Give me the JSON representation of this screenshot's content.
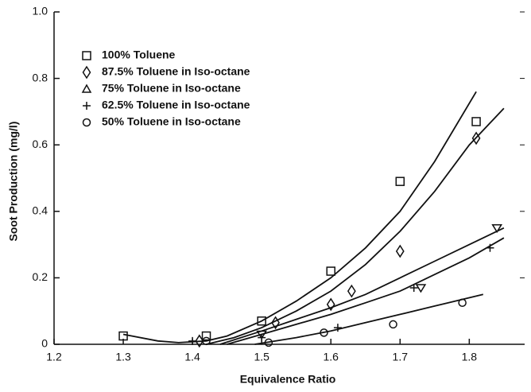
{
  "chart_data": {
    "type": "scatter",
    "xlabel": "Equivalence Ratio",
    "ylabel": "Soot Production (mg/l)",
    "xlim": [
      1.2,
      1.88
    ],
    "xticks": [
      1.2,
      1.3,
      1.4,
      1.5,
      1.6,
      1.7,
      1.8
    ],
    "ylim": [
      0,
      1.0
    ],
    "yticks": [
      0,
      0.2,
      0.4,
      0.6,
      0.8,
      {
        "value": 1.0,
        "label": "1.0"
      }
    ],
    "legend": "upper left",
    "series": [
      {
        "name": "100% Toluene",
        "marker": "square",
        "color": "#111111",
        "x": [
          1.3,
          1.42,
          1.5,
          1.6,
          1.7,
          1.81
        ],
        "values": [
          0.025,
          0.025,
          0.07,
          0.22,
          0.49,
          0.67
        ]
      },
      {
        "name": "87.5% Toluene in Iso-octane",
        "marker": "diamond",
        "color": "#111111",
        "x": [
          1.41,
          1.52,
          1.6,
          1.63,
          1.7,
          1.81
        ],
        "values": [
          0.01,
          0.065,
          0.12,
          0.16,
          0.28,
          0.62
        ]
      },
      {
        "name": "75% Toluene in Iso-octane",
        "marker": "triangle",
        "color": "#111111",
        "x": [
          1.5,
          1.73,
          1.84
        ],
        "values": [
          0.03,
          0.17,
          0.35
        ]
      },
      {
        "name": "62.5% Toluene in Iso-octane",
        "marker": "plus",
        "color": "#111111",
        "x": [
          1.4,
          1.5,
          1.61,
          1.72,
          1.83
        ],
        "values": [
          0.01,
          0.02,
          0.05,
          0.17,
          0.29
        ]
      },
      {
        "name": "50% Toluene in Iso-octane",
        "marker": "circle",
        "color": "#111111",
        "x": [
          1.42,
          1.51,
          1.59,
          1.69,
          1.79
        ],
        "values": [
          0.01,
          0.005,
          0.035,
          0.06,
          0.125
        ]
      }
    ],
    "curves": [
      {
        "x": [
          1.3,
          1.35,
          1.38,
          1.42,
          1.45,
          1.5,
          1.55,
          1.6,
          1.65,
          1.7,
          1.75,
          1.81
        ],
        "values": [
          0.03,
          0.01,
          0.005,
          0.01,
          0.025,
          0.07,
          0.13,
          0.2,
          0.29,
          0.4,
          0.55,
          0.76
        ]
      },
      {
        "x": [
          1.42,
          1.46,
          1.5,
          1.55,
          1.6,
          1.65,
          1.7,
          1.75,
          1.8,
          1.85
        ],
        "values": [
          0,
          0.02,
          0.05,
          0.1,
          0.16,
          0.24,
          0.34,
          0.46,
          0.6,
          0.71
        ]
      },
      {
        "x": [
          1.44,
          1.5,
          1.55,
          1.6,
          1.65,
          1.7,
          1.75,
          1.8,
          1.85
        ],
        "values": [
          0,
          0.04,
          0.075,
          0.11,
          0.15,
          0.2,
          0.25,
          0.3,
          0.35
        ]
      },
      {
        "x": [
          1.45,
          1.5,
          1.55,
          1.6,
          1.65,
          1.7,
          1.75,
          1.8,
          1.85
        ],
        "values": [
          0,
          0.03,
          0.06,
          0.09,
          0.125,
          0.16,
          0.21,
          0.26,
          0.32
        ]
      },
      {
        "x": [
          1.49,
          1.55,
          1.6,
          1.65,
          1.7,
          1.75,
          1.82
        ],
        "values": [
          0,
          0.02,
          0.04,
          0.065,
          0.09,
          0.115,
          0.15
        ]
      }
    ]
  }
}
